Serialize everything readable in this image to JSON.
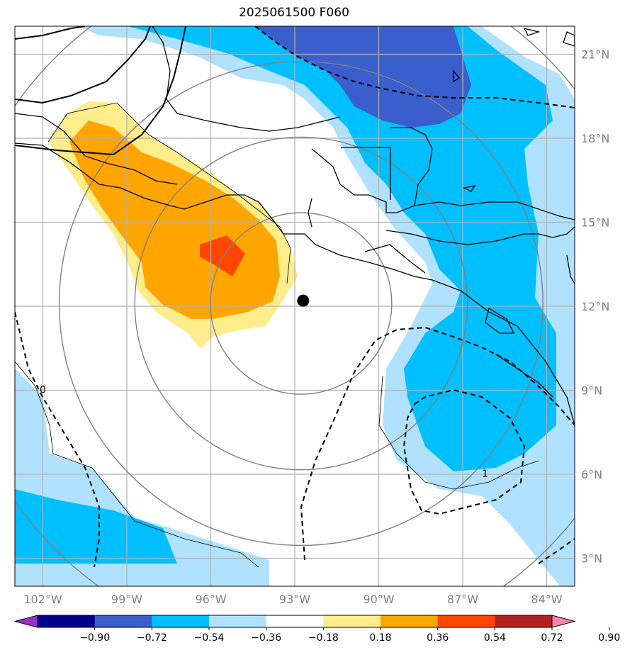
{
  "title": "2025061500 F060",
  "map": {
    "lon_range": [
      -103,
      -83
    ],
    "lat_range": [
      2,
      22
    ],
    "lon_ticks": [
      {
        "value": -102,
        "label": "102°W"
      },
      {
        "value": -99,
        "label": "99°W"
      },
      {
        "value": -96,
        "label": "96°W"
      },
      {
        "value": -93,
        "label": "93°W"
      },
      {
        "value": -90,
        "label": "90°W"
      },
      {
        "value": -87,
        "label": "87°W"
      },
      {
        "value": -84,
        "label": "84°W"
      }
    ],
    "lat_ticks": [
      {
        "value": 3,
        "label": "3°N"
      },
      {
        "value": 6,
        "label": "6°N"
      },
      {
        "value": 9,
        "label": "9°N"
      },
      {
        "value": 12,
        "label": "12°N"
      },
      {
        "value": 15,
        "label": "15°N"
      },
      {
        "value": 18,
        "label": "18°N"
      },
      {
        "value": 21,
        "label": "21°N"
      }
    ],
    "center_marker": {
      "lon": -92.7,
      "lat": 12.2
    },
    "range_rings_deg": [
      3,
      5.5,
      8,
      11.5
    ],
    "contour_labels": [
      {
        "text": "0",
        "lon": -102.0,
        "lat": 8.9
      },
      {
        "text": "1",
        "lon": -86.2,
        "lat": 5.9
      }
    ]
  },
  "colorbar": {
    "colors": [
      "#9932cc",
      "#00008b",
      "#3a5fcd",
      "#00bfff",
      "#b0e2ff",
      "#ffffff",
      "#ffec8b",
      "#ffa500",
      "#ff4500",
      "#b22222",
      "#ff82ab"
    ],
    "labels": [
      "−0.90",
      "−0.72",
      "−0.54",
      "−0.36",
      "−0.18",
      "0.18",
      "0.36",
      "0.54",
      "0.72",
      "0.90"
    ]
  }
}
